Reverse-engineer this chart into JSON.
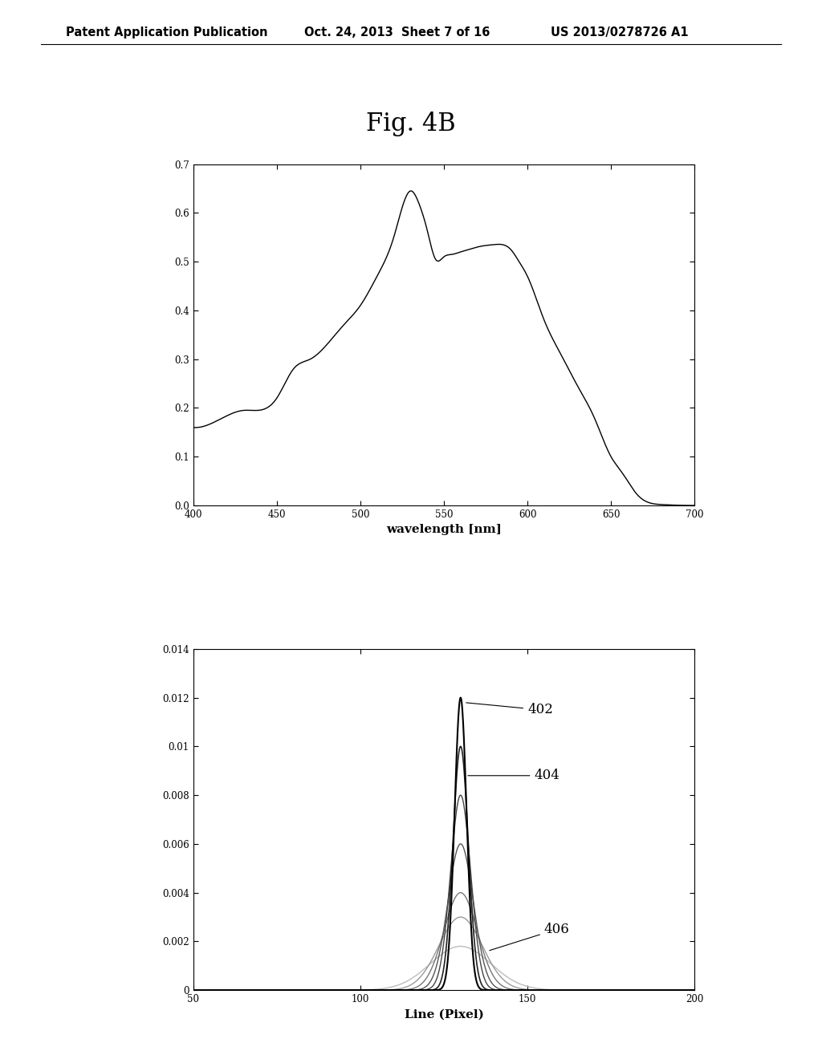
{
  "fig_label": "Fig. 4B",
  "header_left": "Patent Application Publication",
  "header_mid": "Oct. 24, 2013  Sheet 7 of 16",
  "header_right": "US 2013/0278726 A1",
  "plot1": {
    "xlabel": "wavelength [nm]",
    "xlim": [
      400,
      700
    ],
    "ylim": [
      0,
      0.7
    ],
    "yticks": [
      0,
      0.1,
      0.2,
      0.3,
      0.4,
      0.5,
      0.6,
      0.7
    ],
    "xticks": [
      400,
      450,
      500,
      550,
      600,
      650,
      700
    ]
  },
  "plot2": {
    "xlabel": "Line (Pixel)",
    "xlim": [
      50,
      200
    ],
    "ylim": [
      0,
      0.014
    ],
    "yticks": [
      0,
      0.002,
      0.004,
      0.006,
      0.008,
      0.01,
      0.012,
      0.014
    ],
    "xticks": [
      50,
      100,
      150,
      200
    ]
  },
  "background_color": "#ffffff",
  "line_color": "#000000"
}
